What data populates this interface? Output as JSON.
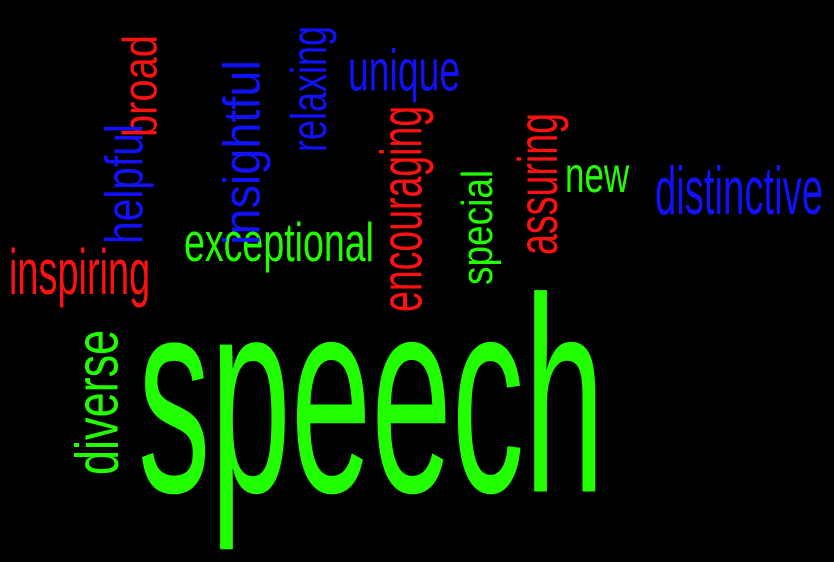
{
  "words": [
    {
      "text": "speech",
      "color": "#22ff00",
      "vertical": false
    },
    {
      "text": "inspiring",
      "color": "#ff1111",
      "vertical": false
    },
    {
      "text": "exceptional",
      "color": "#22ff00",
      "vertical": false
    },
    {
      "text": "unique",
      "color": "#1111ff",
      "vertical": false
    },
    {
      "text": "new",
      "color": "#22ff00",
      "vertical": false
    },
    {
      "text": "distinctive",
      "color": "#1111ff",
      "vertical": false
    },
    {
      "text": "broad",
      "color": "#ff1111",
      "vertical": true
    },
    {
      "text": "helpful",
      "color": "#1111ff",
      "vertical": true
    },
    {
      "text": "insightful",
      "color": "#1111ff",
      "vertical": true
    },
    {
      "text": "relaxing",
      "color": "#1111ff",
      "vertical": true
    },
    {
      "text": "encouraging",
      "color": "#ff1111",
      "vertical": true
    },
    {
      "text": "special",
      "color": "#22ff00",
      "vertical": true
    },
    {
      "text": "assuring",
      "color": "#ff1111",
      "vertical": true
    },
    {
      "text": "diverse",
      "color": "#22ff00",
      "vertical": true
    }
  ]
}
